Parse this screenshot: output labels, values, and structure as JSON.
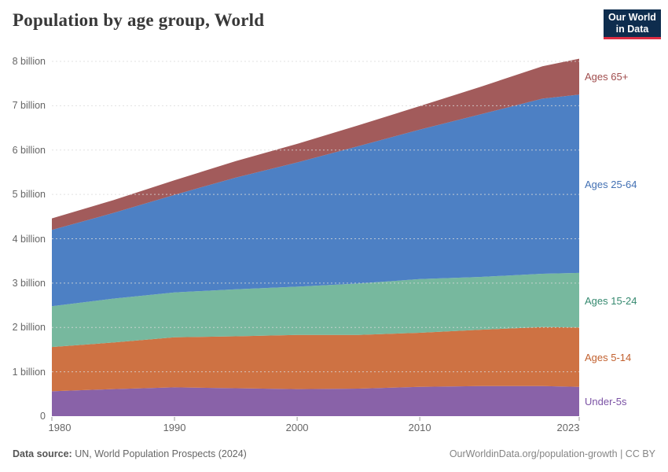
{
  "header": {
    "title": "Population by age group, World",
    "logo": {
      "line1": "Our World",
      "line2": "in Data",
      "bg": "#0e2d4e",
      "accent": "#dc2d43"
    }
  },
  "chart_data": {
    "type": "area",
    "stacked": true,
    "title": "Population by age group, World",
    "unit": "billion people",
    "grid": "dashed horizontal",
    "legend_position": "right edge, colored labels",
    "ylim": [
      0,
      8
    ],
    "xlim": [
      1980,
      2023
    ],
    "x": [
      1980,
      1985,
      1990,
      1995,
      2000,
      2005,
      2010,
      2015,
      2020,
      2023
    ],
    "series": [
      {
        "name": "Under-5s",
        "color": "#8962a8",
        "label_color": "#7b52a5",
        "values": [
          0.56,
          0.61,
          0.65,
          0.63,
          0.61,
          0.62,
          0.66,
          0.68,
          0.68,
          0.66
        ]
      },
      {
        "name": "Ages 5-14",
        "color": "#ce7243",
        "label_color": "#c2612f",
        "values": [
          1.0,
          1.05,
          1.13,
          1.17,
          1.22,
          1.21,
          1.22,
          1.27,
          1.33,
          1.34
        ]
      },
      {
        "name": "Ages 15-24",
        "color": "#77b89e",
        "label_color": "#35896f",
        "values": [
          0.92,
          0.99,
          1.01,
          1.06,
          1.09,
          1.16,
          1.21,
          1.19,
          1.2,
          1.23
        ]
      },
      {
        "name": "Ages 25-64",
        "color": "#4d80c4",
        "label_color": "#4270b3",
        "values": [
          1.72,
          1.93,
          2.2,
          2.52,
          2.8,
          3.1,
          3.37,
          3.67,
          3.95,
          4.02
        ]
      },
      {
        "name": "Ages 65+",
        "color": "#a25b5b",
        "label_color": "#a04d4d",
        "values": [
          0.26,
          0.29,
          0.33,
          0.37,
          0.42,
          0.47,
          0.53,
          0.62,
          0.73,
          0.81
        ]
      }
    ],
    "totals": [
      4.46,
      4.87,
      5.32,
      5.75,
      6.14,
      6.56,
      6.99,
      7.43,
      7.89,
      8.06
    ]
  },
  "axes": {
    "y_ticks": [
      {
        "label": "0",
        "value": 0
      },
      {
        "label": "1 billion",
        "value": 1
      },
      {
        "label": "2 billion",
        "value": 2
      },
      {
        "label": "3 billion",
        "value": 3
      },
      {
        "label": "4 billion",
        "value": 4
      },
      {
        "label": "5 billion",
        "value": 5
      },
      {
        "label": "6 billion",
        "value": 6
      },
      {
        "label": "7 billion",
        "value": 7
      },
      {
        "label": "8 billion",
        "value": 8
      }
    ],
    "x_ticks": [
      {
        "label": "1980",
        "value": 1980
      },
      {
        "label": "1990",
        "value": 1990
      },
      {
        "label": "2000",
        "value": 2000
      },
      {
        "label": "2010",
        "value": 2010
      },
      {
        "label": "2023",
        "value": 2023
      }
    ]
  },
  "footer": {
    "source_label": "Data source:",
    "source_text": "UN, World Population Prospects (2024)",
    "right_text": "OurWorldinData.org/population-growth | CC BY"
  }
}
